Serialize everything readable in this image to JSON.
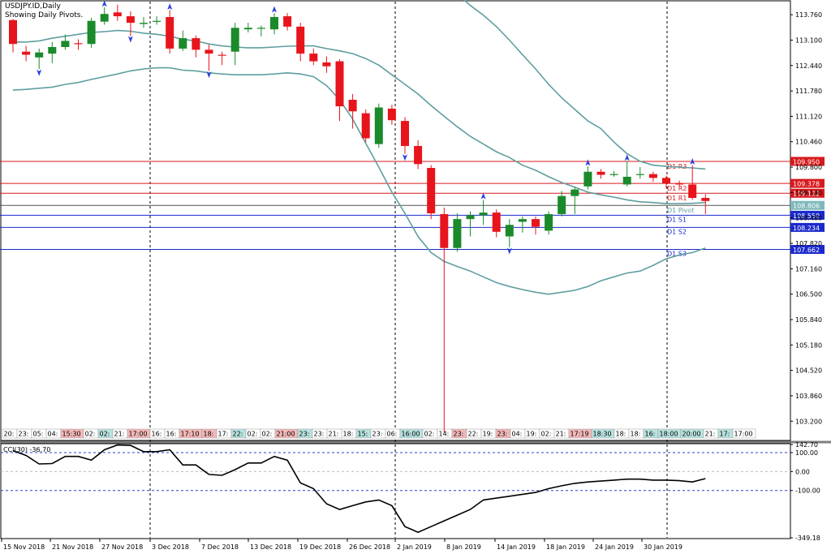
{
  "header": {
    "symbol_line": "USDJPY.ID,Daily",
    "pivot_line": "Showing Daily Pivots."
  },
  "colors": {
    "bull": "#1a8a2a",
    "bear": "#e8141b",
    "band": "#5f9ea0",
    "resistance": "#d7191c",
    "support": "#1b2acb",
    "pivot": "#5f9ea0",
    "cci": "#000000",
    "fractal": "#2b3fd6"
  },
  "cci": {
    "label": "CCI(30) -36.70",
    "ticks": [
      "142.70",
      "100.00",
      "0.00",
      "-100.00",
      "-349.18"
    ],
    "levels": [
      100,
      0,
      -100
    ],
    "ylim": [
      -349.18,
      142.7
    ]
  },
  "chart_data": {
    "type": "candlestick",
    "ylim": [
      102.7,
      114.1
    ],
    "y_ticks": [
      "113.760",
      "113.100",
      "112.440",
      "111.780",
      "111.120",
      "110.460",
      "109.800",
      "109.140",
      "108.480",
      "107.820",
      "107.160",
      "106.500",
      "105.840",
      "105.180",
      "104.520",
      "103.860",
      "103.200"
    ],
    "x_ticks": [
      "15 Nov 2018",
      "21 Nov 2018",
      "27 Nov 2018",
      "3 Dec 2018",
      "7 Dec 2018",
      "13 Dec 2018",
      "19 Dec 2018",
      "26 Dec 2018",
      "2 Jan 2019",
      "8 Jan 2019",
      "14 Jan 2019",
      "18 Jan 2019",
      "24 Jan 2019",
      "30 Jan 2019"
    ],
    "candles": [
      {
        "o": 113.62,
        "h": 113.65,
        "l": 112.78,
        "c": 113.0
      },
      {
        "o": 112.8,
        "h": 112.95,
        "l": 112.55,
        "c": 112.72
      },
      {
        "o": 112.65,
        "h": 112.88,
        "l": 112.35,
        "c": 112.78
      },
      {
        "o": 112.75,
        "h": 113.05,
        "l": 112.5,
        "c": 112.92
      },
      {
        "o": 112.92,
        "h": 113.25,
        "l": 112.85,
        "c": 113.08
      },
      {
        "o": 113.02,
        "h": 113.12,
        "l": 112.85,
        "c": 113.0
      },
      {
        "o": 113.0,
        "h": 113.68,
        "l": 112.9,
        "c": 113.6
      },
      {
        "o": 113.58,
        "h": 113.95,
        "l": 113.5,
        "c": 113.78
      },
      {
        "o": 113.82,
        "h": 114.02,
        "l": 113.6,
        "c": 113.72
      },
      {
        "o": 113.72,
        "h": 113.85,
        "l": 113.2,
        "c": 113.55
      },
      {
        "o": 113.52,
        "h": 113.7,
        "l": 113.42,
        "c": 113.55
      },
      {
        "o": 113.58,
        "h": 113.72,
        "l": 113.5,
        "c": 113.6
      },
      {
        "o": 113.7,
        "h": 113.88,
        "l": 112.75,
        "c": 112.88
      },
      {
        "o": 112.88,
        "h": 113.35,
        "l": 112.82,
        "c": 113.15
      },
      {
        "o": 113.15,
        "h": 113.22,
        "l": 112.65,
        "c": 112.85
      },
      {
        "o": 112.85,
        "h": 112.98,
        "l": 112.3,
        "c": 112.75
      },
      {
        "o": 112.72,
        "h": 112.8,
        "l": 112.45,
        "c": 112.7
      },
      {
        "o": 112.8,
        "h": 113.55,
        "l": 112.45,
        "c": 113.42
      },
      {
        "o": 113.38,
        "h": 113.55,
        "l": 113.3,
        "c": 113.42
      },
      {
        "o": 113.42,
        "h": 113.48,
        "l": 113.2,
        "c": 113.42
      },
      {
        "o": 113.38,
        "h": 113.8,
        "l": 113.25,
        "c": 113.7
      },
      {
        "o": 113.72,
        "h": 113.8,
        "l": 113.35,
        "c": 113.45
      },
      {
        "o": 113.45,
        "h": 113.55,
        "l": 112.55,
        "c": 112.75
      },
      {
        "o": 112.75,
        "h": 112.88,
        "l": 112.45,
        "c": 112.55
      },
      {
        "o": 112.52,
        "h": 112.68,
        "l": 112.25,
        "c": 112.42
      },
      {
        "o": 112.55,
        "h": 112.6,
        "l": 111.0,
        "c": 111.38
      },
      {
        "o": 111.55,
        "h": 111.7,
        "l": 110.8,
        "c": 111.25
      },
      {
        "o": 111.2,
        "h": 111.3,
        "l": 110.45,
        "c": 110.55
      },
      {
        "o": 110.4,
        "h": 111.45,
        "l": 110.3,
        "c": 111.35
      },
      {
        "o": 111.32,
        "h": 111.42,
        "l": 110.9,
        "c": 111.02
      },
      {
        "o": 111.0,
        "h": 111.1,
        "l": 110.15,
        "c": 110.35
      },
      {
        "o": 110.35,
        "h": 110.5,
        "l": 109.75,
        "c": 109.88
      },
      {
        "o": 109.78,
        "h": 109.85,
        "l": 108.45,
        "c": 108.6
      },
      {
        "o": 108.58,
        "h": 108.75,
        "l": 102.9,
        "c": 107.7
      },
      {
        "o": 107.7,
        "h": 108.6,
        "l": 107.6,
        "c": 108.45
      },
      {
        "o": 108.45,
        "h": 108.65,
        "l": 108.0,
        "c": 108.55
      },
      {
        "o": 108.55,
        "h": 108.95,
        "l": 108.3,
        "c": 108.62
      },
      {
        "o": 108.62,
        "h": 108.7,
        "l": 107.98,
        "c": 108.12
      },
      {
        "o": 108.0,
        "h": 108.45,
        "l": 107.72,
        "c": 108.3
      },
      {
        "o": 108.38,
        "h": 108.52,
        "l": 108.1,
        "c": 108.45
      },
      {
        "o": 108.45,
        "h": 108.52,
        "l": 108.05,
        "c": 108.25
      },
      {
        "o": 108.15,
        "h": 108.65,
        "l": 108.05,
        "c": 108.58
      },
      {
        "o": 108.58,
        "h": 109.18,
        "l": 108.52,
        "c": 109.05
      },
      {
        "o": 109.05,
        "h": 109.28,
        "l": 108.58,
        "c": 109.22
      },
      {
        "o": 109.3,
        "h": 109.82,
        "l": 109.22,
        "c": 109.68
      },
      {
        "o": 109.68,
        "h": 109.75,
        "l": 109.5,
        "c": 109.6
      },
      {
        "o": 109.62,
        "h": 109.7,
        "l": 109.55,
        "c": 109.62
      },
      {
        "o": 109.35,
        "h": 109.95,
        "l": 109.3,
        "c": 109.55
      },
      {
        "o": 109.6,
        "h": 109.8,
        "l": 109.5,
        "c": 109.62
      },
      {
        "o": 109.62,
        "h": 109.68,
        "l": 109.42,
        "c": 109.52
      },
      {
        "o": 109.52,
        "h": 109.58,
        "l": 109.25,
        "c": 109.38
      },
      {
        "o": 109.38,
        "h": 109.45,
        "l": 109.28,
        "c": 109.35
      },
      {
        "o": 109.35,
        "h": 109.85,
        "l": 108.95,
        "c": 109.0
      },
      {
        "o": 109.0,
        "h": 109.1,
        "l": 108.58,
        "c": 108.92
      }
    ],
    "bands": {
      "upper": [
        114.5,
        114.48,
        114.4,
        114.35,
        114.36,
        114.4,
        114.48,
        114.62,
        114.6,
        114.55,
        114.48,
        114.4,
        114.35,
        114.32,
        114.28,
        114.3,
        114.35,
        114.38,
        114.42,
        114.5,
        114.58,
        114.6,
        114.65,
        114.62,
        114.55,
        114.5,
        114.6,
        114.62,
        114.62,
        114.6,
        114.55,
        114.5,
        114.5,
        114.45,
        114.3,
        114.0,
        113.75,
        113.45,
        113.1,
        112.72,
        112.35,
        111.95,
        111.6,
        111.3,
        111.0,
        110.8,
        110.45,
        110.15,
        109.95,
        109.85,
        109.82,
        109.8,
        109.78,
        109.75
      ],
      "middle": [
        113.05,
        113.05,
        113.08,
        113.15,
        113.2,
        113.25,
        113.3,
        113.32,
        113.35,
        113.33,
        113.28,
        113.25,
        113.2,
        113.12,
        113.08,
        113.0,
        112.95,
        112.92,
        112.9,
        112.9,
        112.92,
        112.94,
        112.95,
        112.95,
        112.88,
        112.82,
        112.75,
        112.62,
        112.45,
        112.2,
        111.95,
        111.7,
        111.4,
        111.12,
        110.85,
        110.6,
        110.4,
        110.2,
        110.05,
        109.85,
        109.72,
        109.55,
        109.4,
        109.28,
        109.15,
        109.08,
        109.02,
        108.95,
        108.9,
        108.88,
        108.85,
        108.85,
        108.86,
        108.88
      ],
      "lower": [
        111.8,
        111.82,
        111.85,
        111.88,
        111.95,
        112.0,
        112.08,
        112.15,
        112.22,
        112.3,
        112.35,
        112.38,
        112.38,
        112.32,
        112.3,
        112.25,
        112.22,
        112.2,
        112.2,
        112.2,
        112.22,
        112.25,
        112.22,
        112.15,
        111.92,
        111.55,
        111.05,
        110.42,
        109.8,
        109.15,
        108.6,
        108.0,
        107.58,
        107.35,
        107.22,
        107.1,
        106.95,
        106.8,
        106.7,
        106.62,
        106.55,
        106.5,
        106.55,
        106.6,
        106.7,
        106.85,
        106.95,
        107.05,
        107.1,
        107.25,
        107.42,
        107.52,
        107.58,
        107.7
      ]
    },
    "pivots": [
      {
        "name": "D1 R3",
        "value": 109.95,
        "label": "109.950",
        "kind": "resistance"
      },
      {
        "name": "D1 R2",
        "value": 109.378,
        "label": "109.378",
        "kind": "resistance"
      },
      {
        "name": "D1 R1",
        "value": 109.122,
        "label": "109.122",
        "kind": "resistance"
      },
      {
        "name": "D1 Pivot",
        "value": 108.806,
        "label": "108.806",
        "kind": "pivot"
      },
      {
        "name": "D1 S1",
        "value": 108.55,
        "label": "108.550",
        "kind": "support"
      },
      {
        "name": "D1 S2",
        "value": 108.234,
        "label": "108.234",
        "kind": "support"
      },
      {
        "name": "D1 S3",
        "value": 107.662,
        "label": "107.662",
        "kind": "support"
      }
    ],
    "fractals_up": [
      {
        "i": 7,
        "v": 114.05
      },
      {
        "i": 12,
        "v": 113.97
      },
      {
        "i": 20,
        "v": 113.9
      },
      {
        "i": 36,
        "v": 109.05
      },
      {
        "i": 44,
        "v": 109.92
      },
      {
        "i": 47,
        "v": 110.05
      },
      {
        "i": 52,
        "v": 109.95
      }
    ],
    "fractals_down": [
      {
        "i": 2,
        "v": 112.25
      },
      {
        "i": 9,
        "v": 113.12
      },
      {
        "i": 15,
        "v": 112.2
      },
      {
        "i": 30,
        "v": 110.05
      },
      {
        "i": 38,
        "v": 107.62
      }
    ],
    "cci_values": [
      110,
      85,
      40,
      42,
      80,
      80,
      60,
      115,
      140,
      138,
      105,
      105,
      115,
      35,
      35,
      -15,
      -20,
      10,
      45,
      45,
      80,
      60,
      -60,
      -90,
      -170,
      -200,
      -180,
      -160,
      -150,
      -180,
      -290,
      -320,
      -290,
      -260,
      -230,
      -200,
      -150,
      -140,
      -130,
      -120,
      -110,
      -90,
      -75,
      -62,
      -55,
      -50,
      -45,
      -40,
      -40,
      -45,
      -45,
      -48,
      -55,
      -37
    ],
    "time_strip": [
      {
        "t": "20:",
        "hl": ""
      },
      {
        "t": "23:",
        "hl": ""
      },
      {
        "t": "05:",
        "hl": ""
      },
      {
        "t": "04:",
        "hl": ""
      },
      {
        "t": "15:30",
        "hl": "red"
      },
      {
        "t": "02:",
        "hl": ""
      },
      {
        "t": "02:",
        "hl": "green"
      },
      {
        "t": "21:",
        "hl": ""
      },
      {
        "t": "17:00",
        "hl": "red"
      },
      {
        "t": "16:",
        "hl": ""
      },
      {
        "t": "16:",
        "hl": ""
      },
      {
        "t": "17:10",
        "hl": "red"
      },
      {
        "t": "18:",
        "hl": "red"
      },
      {
        "t": "17:",
        "hl": ""
      },
      {
        "t": "22:",
        "hl": "green"
      },
      {
        "t": "02:",
        "hl": ""
      },
      {
        "t": "02:",
        "hl": ""
      },
      {
        "t": "21:00",
        "hl": "red"
      },
      {
        "t": "23:",
        "hl": "green"
      },
      {
        "t": "23:",
        "hl": ""
      },
      {
        "t": "21:",
        "hl": ""
      },
      {
        "t": "18:",
        "hl": ""
      },
      {
        "t": "15:",
        "hl": "green"
      },
      {
        "t": "23:",
        "hl": ""
      },
      {
        "t": "06:",
        "hl": ""
      },
      {
        "t": "16:00",
        "hl": "green"
      },
      {
        "t": "02:",
        "hl": ""
      },
      {
        "t": "14:",
        "hl": ""
      },
      {
        "t": "23:",
        "hl": "red"
      },
      {
        "t": "22:",
        "hl": ""
      },
      {
        "t": "19:",
        "hl": ""
      },
      {
        "t": "23:",
        "hl": "red"
      },
      {
        "t": "04:",
        "hl": ""
      },
      {
        "t": "19:",
        "hl": ""
      },
      {
        "t": "02:",
        "hl": ""
      },
      {
        "t": "21:",
        "hl": ""
      },
      {
        "t": "17:19",
        "hl": "red"
      },
      {
        "t": "18:30",
        "hl": "green"
      },
      {
        "t": "18:",
        "hl": ""
      },
      {
        "t": "18:",
        "hl": ""
      },
      {
        "t": "16:",
        "hl": "green"
      },
      {
        "t": "18:00",
        "hl": "green"
      },
      {
        "t": "20:00",
        "hl": "green"
      },
      {
        "t": "21:",
        "hl": ""
      },
      {
        "t": "17:",
        "hl": "green"
      },
      {
        "t": "17:00",
        "hl": ""
      }
    ]
  }
}
